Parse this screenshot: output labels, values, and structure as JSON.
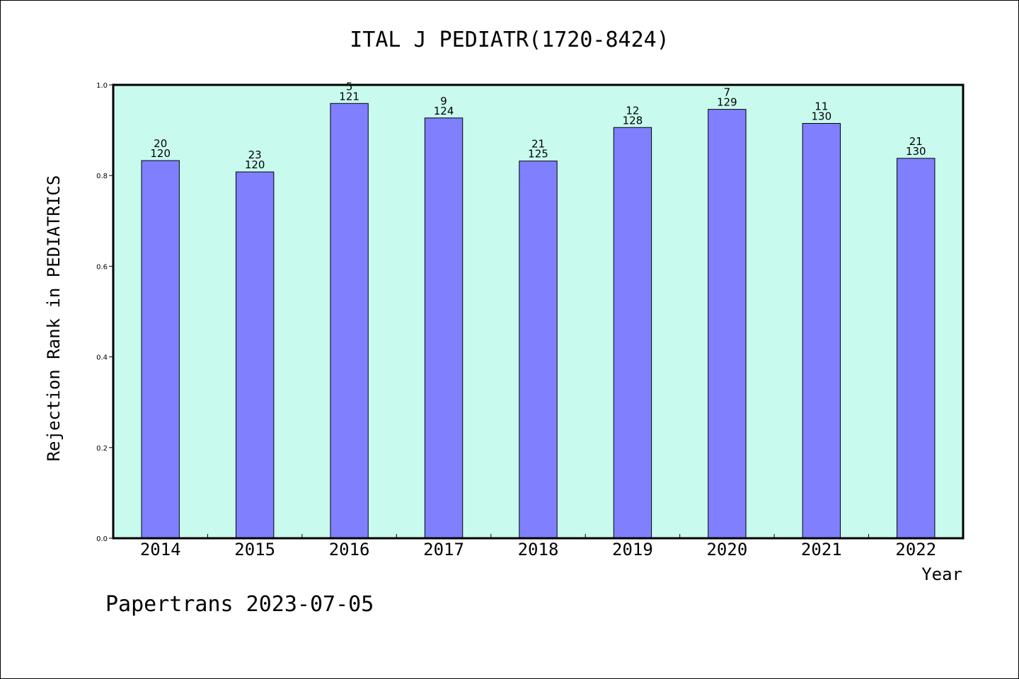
{
  "chart_data": {
    "type": "bar",
    "title": "ITAL J PEDIATR(1720-8424)",
    "xlabel": "Year",
    "ylabel": "Rejection Rank in PEDIATRICS",
    "ylim": [
      0,
      1.0
    ],
    "yticks": [
      "0.0",
      "0.2",
      "0.4",
      "0.6",
      "0.8",
      "1.0"
    ],
    "categories": [
      "2014",
      "2015",
      "2016",
      "2017",
      "2018",
      "2019",
      "2020",
      "2021",
      "2022"
    ],
    "values": [
      0.833,
      0.808,
      0.959,
      0.927,
      0.832,
      0.906,
      0.946,
      0.915,
      0.838
    ],
    "rank_labels": [
      "20",
      "23",
      "5",
      "9",
      "21",
      "12",
      "7",
      "11",
      "21"
    ],
    "total_labels": [
      "120",
      "120",
      "121",
      "124",
      "125",
      "128",
      "129",
      "130",
      "130"
    ],
    "grid": false,
    "colors": {
      "plot_bg": "#c8faee",
      "bar": "#8080ff",
      "axis": "#000000"
    }
  },
  "footer": {
    "text": "Papertrans 2023-07-05"
  }
}
